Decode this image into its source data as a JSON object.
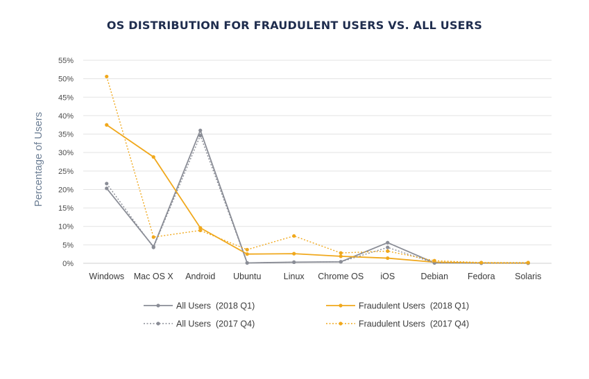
{
  "chart_data": {
    "type": "line",
    "title": "OS DISTRIBUTION FOR FRAUDULENT USERS VS. ALL USERS",
    "ylabel": "Percentage of Users",
    "xlabel": "",
    "categories": [
      "Windows",
      "Mac OS X",
      "Android",
      "Ubuntu",
      "Linux",
      "Chrome OS",
      "iOS",
      "Debian",
      "Fedora",
      "Solaris"
    ],
    "ylim": [
      0,
      55
    ],
    "yticks": [
      0,
      5,
      10,
      15,
      20,
      25,
      30,
      35,
      40,
      45,
      50,
      55
    ],
    "yticks_suffix": "%",
    "grid": true,
    "legend_position": "bottom",
    "series": [
      {
        "name": "All Users  (2018 Q1)",
        "color": "#8a8d96",
        "dashed": false,
        "values": [
          20.3,
          4.5,
          36.0,
          0.1,
          0.3,
          0.4,
          5.6,
          0.1,
          0.05,
          0.05
        ]
      },
      {
        "name": "Fraudulent Users  (2018 Q1)",
        "color": "#f0a81c",
        "dashed": false,
        "values": [
          37.5,
          28.8,
          9.6,
          2.5,
          2.6,
          1.9,
          1.4,
          0.3,
          0.1,
          0.05
        ]
      },
      {
        "name": "All Users  (2017 Q4)",
        "color": "#8a8d96",
        "dashed": true,
        "values": [
          21.6,
          4.3,
          34.6,
          0.1,
          0.3,
          0.4,
          4.3,
          0.1,
          0.05,
          0.05
        ]
      },
      {
        "name": "Fraudulent Users  (2017 Q4)",
        "color": "#f0a81c",
        "dashed": true,
        "values": [
          50.6,
          7.1,
          8.9,
          3.7,
          7.4,
          2.8,
          3.3,
          0.7,
          0.2,
          0.2
        ]
      }
    ]
  }
}
